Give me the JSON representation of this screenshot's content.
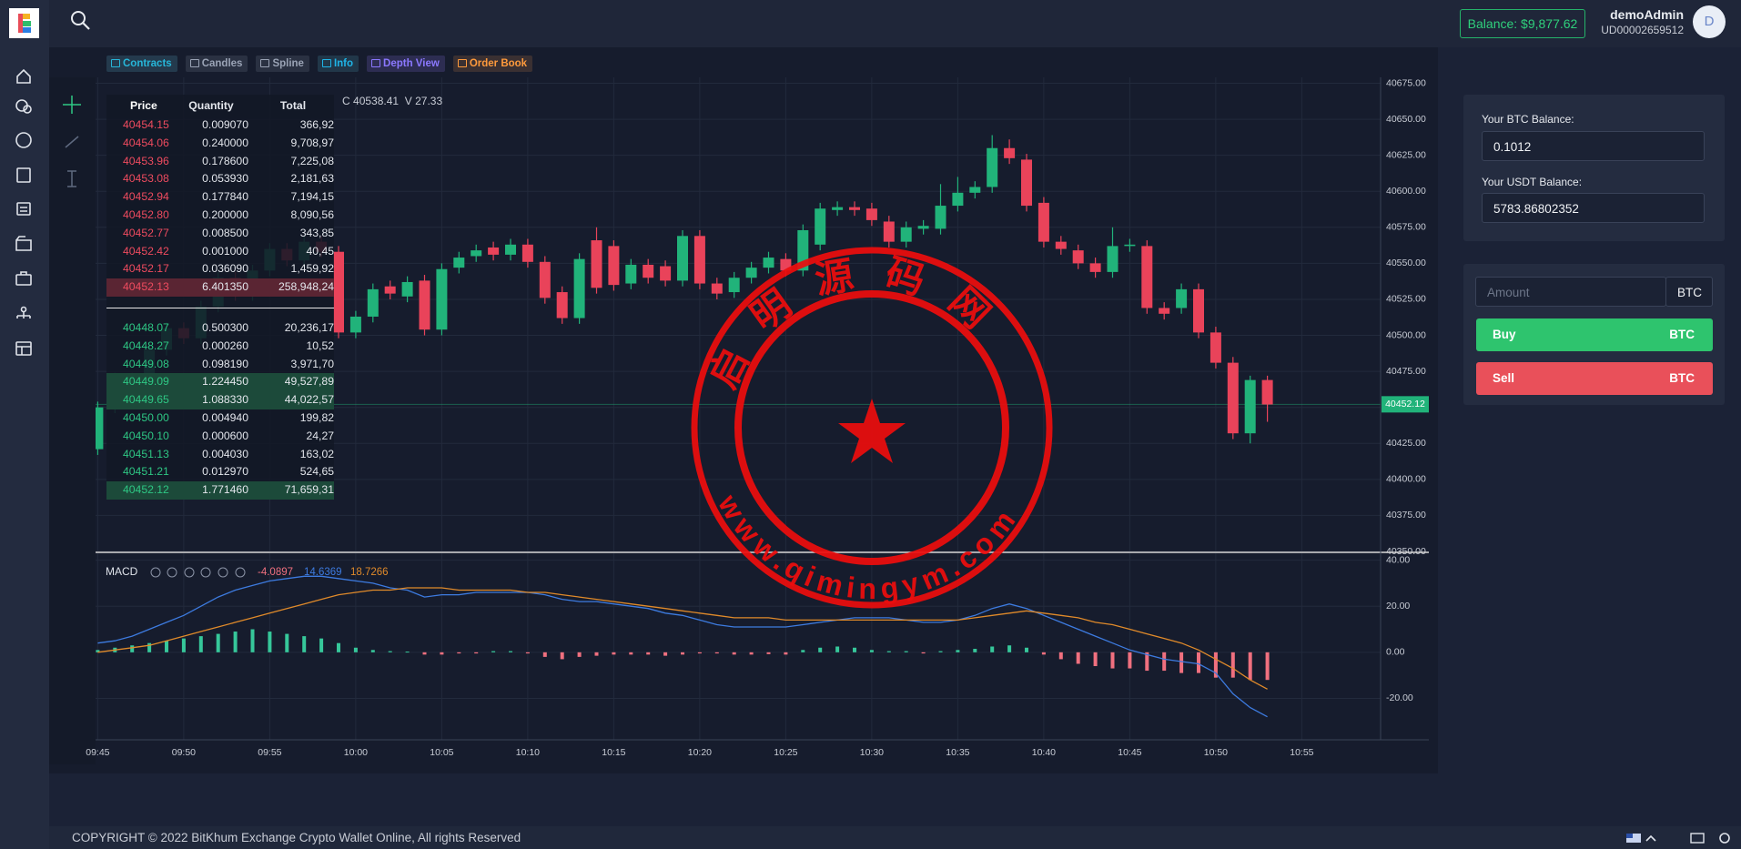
{
  "header": {
    "balance": "Balance: $9,877.62",
    "username": "demoAdmin",
    "user_id": "UD00002659512",
    "avatar": "D"
  },
  "toolbar": [
    "Contracts",
    "Candles",
    "Spline",
    "Info",
    "Depth View",
    "Order Book"
  ],
  "order_book": {
    "columns": [
      "Price",
      "Quantity",
      "Total"
    ],
    "asks": [
      [
        "40454.15",
        "0.009070",
        "366,92"
      ],
      [
        "40454.06",
        "0.240000",
        "9,708,97"
      ],
      [
        "40453.96",
        "0.178600",
        "7,225,08"
      ],
      [
        "40453.08",
        "0.053930",
        "2,181,63"
      ],
      [
        "40452.94",
        "0.177840",
        "7,194,15"
      ],
      [
        "40452.80",
        "0.200000",
        "8,090,56"
      ],
      [
        "40452.77",
        "0.008500",
        "343,85"
      ],
      [
        "40452.42",
        "0.001000",
        "40,45"
      ],
      [
        "40452.17",
        "0.036090",
        "1,459,92"
      ],
      [
        "40452.13",
        "6.401350",
        "258,948,24"
      ]
    ],
    "bids": [
      [
        "40448.07",
        "0.500300",
        "20,236,17"
      ],
      [
        "40448.27",
        "0.000260",
        "10,52"
      ],
      [
        "40449.08",
        "0.098190",
        "3,971,70"
      ],
      [
        "40449.09",
        "1.224450",
        "49,527,89"
      ],
      [
        "40449.65",
        "1.088330",
        "44,022,57"
      ],
      [
        "40450.00",
        "0.004940",
        "199,82"
      ],
      [
        "40450.10",
        "0.000600",
        "24,27"
      ],
      [
        "40451.13",
        "0.004030",
        "163,02"
      ],
      [
        "40451.21",
        "0.012970",
        "524,65"
      ],
      [
        "40452.12",
        "1.771460",
        "71,659,31"
      ]
    ]
  },
  "chart_data": [
    {
      "type": "candlestick",
      "up_color": "#21b37a",
      "down_color": "#e9435a",
      "legend": {
        "close_label": "C",
        "close": 40538.41,
        "volume_label": "V",
        "volume": 27.33
      },
      "last_price": 40452.12,
      "x": [
        "09:45",
        "09:46",
        "09:47",
        "09:48",
        "09:49",
        "09:50",
        "09:51",
        "09:52",
        "09:53",
        "09:54",
        "09:55",
        "09:56",
        "09:57",
        "09:58",
        "09:59",
        "10:00",
        "10:01",
        "10:02",
        "10:03",
        "10:04",
        "10:05",
        "10:06",
        "10:07",
        "10:08",
        "10:09",
        "10:10",
        "10:11",
        "10:12",
        "10:13",
        "10:14",
        "10:15",
        "10:16",
        "10:17",
        "10:18",
        "10:19",
        "10:20",
        "10:21",
        "10:22",
        "10:23",
        "10:24",
        "10:25",
        "10:26",
        "10:27",
        "10:28",
        "10:29",
        "10:30",
        "10:31",
        "10:32",
        "10:33",
        "10:34",
        "10:35",
        "10:36",
        "10:37",
        "10:38",
        "10:39",
        "10:40",
        "10:41",
        "10:42",
        "10:43",
        "10:44",
        "10:45",
        "10:46",
        "10:47",
        "10:48",
        "10:49",
        "10:50",
        "10:51",
        "10:52",
        "10:53"
      ],
      "open": [
        40421,
        40450,
        40470,
        40462,
        40490,
        40505,
        40498,
        40520,
        40540,
        40528,
        40545,
        40560,
        40552,
        40565,
        40558,
        40502,
        40513,
        40534,
        40527,
        40538,
        40504,
        40547,
        40555,
        40561,
        40556,
        40563,
        40551,
        40530,
        40512,
        40566,
        40562,
        40536,
        40549,
        40548,
        40538,
        40569,
        40536,
        40530,
        40540,
        40547,
        40553,
        40545,
        40563,
        40587,
        40589,
        40588,
        40579,
        40565,
        40574,
        40574,
        40590,
        40599,
        40603,
        40630,
        40622,
        40592,
        40565,
        40559,
        40550,
        40544,
        40562,
        40562,
        40519,
        40519,
        40532,
        40502,
        40481,
        40432,
        40469
      ],
      "high": [
        40454,
        40474,
        40474,
        40494,
        40509,
        40509,
        40524,
        40544,
        40544,
        40549,
        40564,
        40564,
        40569,
        40569,
        40562,
        40517,
        40536,
        40538,
        40541,
        40542,
        40550,
        40558,
        40563,
        40565,
        40567,
        40567,
        40555,
        40534,
        40557,
        40575,
        40566,
        40553,
        40553,
        40552,
        40573,
        40573,
        40540,
        40544,
        40551,
        40558,
        40557,
        40577,
        40592,
        40593,
        40593,
        40592,
        40583,
        40579,
        40580,
        40605,
        40610,
        40607,
        40639,
        40636,
        40626,
        40596,
        40569,
        40563,
        40554,
        40575,
        40567,
        40566,
        40523,
        40536,
        40536,
        40506,
        40485,
        40472,
        40472
      ],
      "low": [
        40417,
        40446,
        40458,
        40458,
        40486,
        40494,
        40494,
        40516,
        40524,
        40524,
        40541,
        40548,
        40548,
        40554,
        40498,
        40498,
        40509,
        40525,
        40523,
        40500,
        40500,
        40543,
        40551,
        40552,
        40552,
        40547,
        40522,
        40508,
        40508,
        40529,
        40531,
        40532,
        40536,
        40534,
        40534,
        40532,
        40525,
        40526,
        40536,
        40543,
        40541,
        40541,
        40559,
        40583,
        40583,
        40576,
        40561,
        40561,
        40570,
        40570,
        40586,
        40595,
        40599,
        40619,
        40586,
        40561,
        40556,
        40546,
        40540,
        40540,
        40558,
        40515,
        40511,
        40515,
        40498,
        40477,
        40428,
        40425,
        40440
      ],
      "close": [
        40450,
        40470,
        40462,
        40490,
        40505,
        40498,
        40520,
        40540,
        40528,
        40545,
        40560,
        40552,
        40565,
        40558,
        40502,
        40513,
        40532,
        40529,
        40537,
        40504,
        40546,
        40554,
        40559,
        40556,
        40563,
        40551,
        40526,
        40512,
        40553,
        40533,
        40535,
        40549,
        40540,
        40538,
        40569,
        40536,
        40529,
        40540,
        40547,
        40554,
        40545,
        40573,
        40588,
        40589,
        40587,
        40580,
        40565,
        40575,
        40576,
        40590,
        40599,
        40603,
        40630,
        40623,
        40590,
        40565,
        40560,
        40550,
        40544,
        40562,
        40563,
        40519,
        40515,
        40532,
        40502,
        40481,
        40432,
        40469,
        40452
      ],
      "ylim": [
        40350,
        40675
      ],
      "yticks": [
        {
          "value": 40675,
          "label": "40675.00"
        },
        {
          "value": 40650,
          "label": "40650.00"
        },
        {
          "value": 40625,
          "label": "40625.00"
        },
        {
          "value": 40600,
          "label": "40600.00"
        },
        {
          "value": 40575,
          "label": "40575.00"
        },
        {
          "value": 40550,
          "label": "40550.00"
        },
        {
          "value": 40525,
          "label": "40525.00"
        },
        {
          "value": 40500,
          "label": "40500.00"
        },
        {
          "value": 40475,
          "label": "40475.00"
        },
        {
          "value": 40450,
          "label": "40450.00"
        },
        {
          "value": 40425,
          "label": "40425.00"
        },
        {
          "value": 40400,
          "label": "40400.00"
        },
        {
          "value": 40375,
          "label": "40375.00"
        },
        {
          "value": 40350,
          "label": "40350.00"
        }
      ],
      "xticks": [
        "09:45",
        "09:50",
        "09:55",
        "10:00",
        "10:05",
        "10:10",
        "10:15",
        "10:20",
        "10:25",
        "10:30",
        "10:35",
        "10:40",
        "10:45",
        "10:50",
        "10:55"
      ],
      "grid": true
    },
    {
      "type": "macd",
      "title": "MACD",
      "histogram": {
        "legend_value": -4.0897,
        "up_color": "#36c79a",
        "down_color": "#f0707f",
        "values": [
          1,
          2,
          3,
          4,
          5,
          6,
          7,
          8,
          9,
          10,
          9,
          8,
          7,
          6,
          4,
          2,
          1,
          0.5,
          0.3,
          -1,
          -1,
          -0.5,
          -0.5,
          0.5,
          0.5,
          -0.5,
          -2,
          -3,
          -2,
          -1.5,
          -1,
          -1,
          -1,
          -1.5,
          -1,
          -0.5,
          -0.5,
          -1,
          -1,
          -0.8,
          -1,
          1,
          2,
          2.5,
          2,
          1,
          0.5,
          0.5,
          -0.5,
          0.5,
          1,
          1.5,
          2.5,
          3,
          2,
          -1,
          -3,
          -5,
          -6,
          -7,
          -7,
          -8,
          -8,
          -9,
          -9,
          -11,
          -11,
          -12,
          -12
        ]
      },
      "series": [
        {
          "color": "#3d7be0",
          "legend_value": 14.6369,
          "values": [
            4,
            5,
            7,
            10,
            13,
            16,
            20,
            24,
            27,
            29,
            31,
            32,
            33,
            33,
            32,
            31,
            30,
            28,
            27,
            24,
            25,
            25,
            26,
            26,
            26,
            26,
            25,
            23,
            22,
            22,
            21,
            20,
            19,
            17,
            16,
            14,
            12,
            11,
            11,
            11,
            11,
            12,
            13,
            14,
            15,
            15,
            15,
            14,
            13,
            13,
            14,
            16,
            19,
            21,
            19,
            16,
            13,
            10,
            7,
            4,
            1,
            -1,
            -3,
            -4,
            -5,
            -9,
            -18,
            -24,
            -28
          ]
        },
        {
          "color": "#e08a2a",
          "legend_value": 18.7266,
          "values": [
            0,
            1,
            2,
            3,
            5,
            7,
            9,
            11,
            13,
            15,
            17,
            19,
            21,
            23,
            25,
            26,
            27,
            27,
            28,
            28,
            28,
            27,
            27,
            27,
            27,
            26,
            26,
            25,
            24,
            23,
            22,
            21,
            20,
            19,
            18,
            17,
            16,
            15,
            15,
            15,
            14,
            14,
            14,
            14,
            14,
            14,
            14,
            14,
            14,
            14,
            14,
            15,
            16,
            17,
            18,
            17,
            16,
            15,
            13,
            12,
            10,
            8,
            6,
            4,
            1,
            -3,
            -7,
            -12,
            -16
          ]
        }
      ],
      "ylim": [
        -38,
        43
      ],
      "yticks": [
        {
          "value": 40,
          "label": "40.00"
        },
        {
          "value": 20,
          "label": "20.00"
        },
        {
          "value": 0,
          "label": "0.00"
        },
        {
          "value": -20,
          "label": "-20.00"
        }
      ]
    }
  ],
  "trade_panel": {
    "btc_balance_label": "Your BTC Balance:",
    "btc_balance": "0.1012",
    "usdt_balance_label": "Your USDT Balance:",
    "usdt_balance": "5783.86802352",
    "amount_placeholder": "Amount",
    "amount_unit": "BTC",
    "buy": "Buy",
    "buy_unit": "BTC",
    "sell": "Sell",
    "sell_unit": "BTC"
  },
  "footer": "COPYRIGHT © 2022 BitKhum Exchange Crypto Wallet Online, All rights Reserved",
  "watermark": {
    "top_text": "启明源码网",
    "bottom_text": "www.qimingym.com"
  }
}
